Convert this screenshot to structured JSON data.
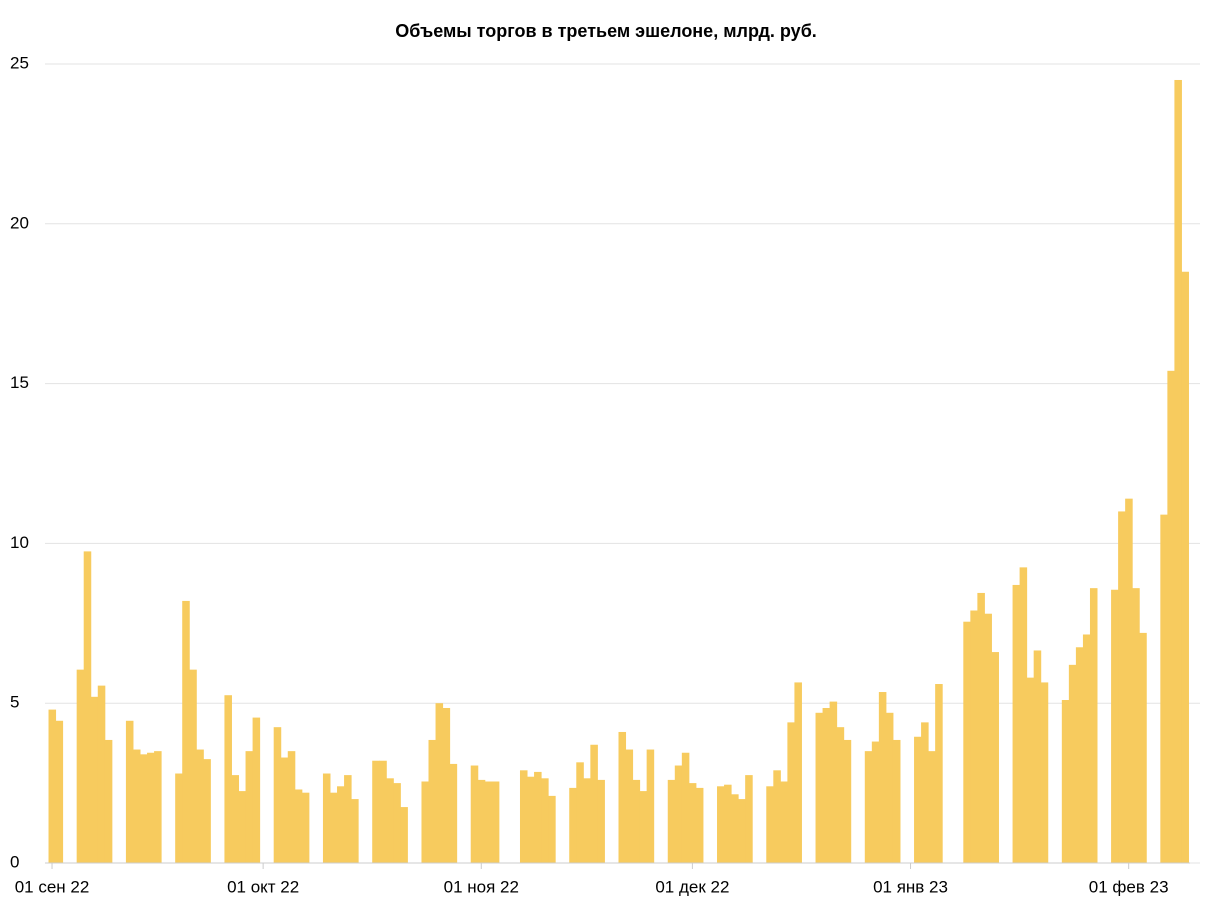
{
  "chart_data": {
    "type": "bar",
    "title": "Объемы торгов в третьем эшелоне, млрд. руб.",
    "color": "#f7cb5e",
    "grid": true,
    "xlim": [
      "2022-08-31",
      "2023-02-10"
    ],
    "xticks": [
      {
        "value": "2022-09-01",
        "label": "01 сен 22"
      },
      {
        "value": "2022-10-01",
        "label": "01 окт 22"
      },
      {
        "value": "2022-11-01",
        "label": "01 ноя 22"
      },
      {
        "value": "2022-12-01",
        "label": "01 дек 22"
      },
      {
        "value": "2023-01-01",
        "label": "01 янв 23"
      },
      {
        "value": "2023-02-01",
        "label": "01 фев 23"
      }
    ],
    "ylim": [
      0,
      25
    ],
    "yticks": [
      0,
      5,
      10,
      15,
      20,
      25
    ],
    "x": [
      "2022-09-01",
      "2022-09-02",
      "2022-09-05",
      "2022-09-06",
      "2022-09-07",
      "2022-09-08",
      "2022-09-09",
      "2022-09-12",
      "2022-09-13",
      "2022-09-14",
      "2022-09-15",
      "2022-09-16",
      "2022-09-19",
      "2022-09-20",
      "2022-09-21",
      "2022-09-22",
      "2022-09-23",
      "2022-09-26",
      "2022-09-27",
      "2022-09-28",
      "2022-09-29",
      "2022-09-30",
      "2022-10-03",
      "2022-10-04",
      "2022-10-05",
      "2022-10-06",
      "2022-10-07",
      "2022-10-10",
      "2022-10-11",
      "2022-10-12",
      "2022-10-13",
      "2022-10-14",
      "2022-10-17",
      "2022-10-18",
      "2022-10-19",
      "2022-10-20",
      "2022-10-21",
      "2022-10-24",
      "2022-10-25",
      "2022-10-26",
      "2022-10-27",
      "2022-10-28",
      "2022-10-31",
      "2022-11-01",
      "2022-11-02",
      "2022-11-03",
      "2022-11-07",
      "2022-11-08",
      "2022-11-09",
      "2022-11-10",
      "2022-11-11",
      "2022-11-14",
      "2022-11-15",
      "2022-11-16",
      "2022-11-17",
      "2022-11-18",
      "2022-11-21",
      "2022-11-22",
      "2022-11-23",
      "2022-11-24",
      "2022-11-25",
      "2022-11-28",
      "2022-11-29",
      "2022-11-30",
      "2022-12-01",
      "2022-12-02",
      "2022-12-05",
      "2022-12-06",
      "2022-12-07",
      "2022-12-08",
      "2022-12-09",
      "2022-12-12",
      "2022-12-13",
      "2022-12-14",
      "2022-12-15",
      "2022-12-16",
      "2022-12-19",
      "2022-12-20",
      "2022-12-21",
      "2022-12-22",
      "2022-12-23",
      "2022-12-26",
      "2022-12-27",
      "2022-12-28",
      "2022-12-29",
      "2022-12-30",
      "2023-01-02",
      "2023-01-03",
      "2023-01-04",
      "2023-01-05",
      "2023-01-09",
      "2023-01-10",
      "2023-01-11",
      "2023-01-12",
      "2023-01-13",
      "2023-01-16",
      "2023-01-17",
      "2023-01-18",
      "2023-01-19",
      "2023-01-20",
      "2023-01-23",
      "2023-01-24",
      "2023-01-25",
      "2023-01-26",
      "2023-01-27",
      "2023-01-30",
      "2023-01-31",
      "2023-02-01",
      "2023-02-02",
      "2023-02-03",
      "2023-02-06",
      "2023-02-07",
      "2023-02-08",
      "2023-02-09"
    ],
    "values": [
      4.8,
      4.45,
      6.05,
      9.75,
      5.2,
      5.55,
      3.85,
      4.45,
      3.55,
      3.4,
      3.45,
      3.5,
      2.8,
      8.2,
      6.05,
      3.55,
      3.25,
      5.25,
      2.75,
      2.25,
      3.5,
      4.55,
      4.25,
      3.3,
      3.5,
      2.3,
      2.2,
      2.8,
      2.2,
      2.4,
      2.75,
      2.0,
      3.2,
      3.2,
      2.65,
      2.5,
      1.75,
      2.55,
      3.85,
      5.0,
      4.85,
      3.1,
      3.05,
      2.6,
      2.55,
      2.55,
      2.9,
      2.7,
      2.85,
      2.65,
      2.1,
      2.35,
      3.15,
      2.65,
      3.7,
      2.6,
      4.1,
      3.55,
      2.6,
      2.25,
      3.55,
      2.6,
      3.05,
      3.45,
      2.5,
      2.35,
      2.4,
      2.45,
      2.15,
      2.0,
      2.75,
      2.4,
      2.9,
      2.55,
      4.4,
      5.65,
      4.7,
      4.85,
      5.05,
      4.25,
      3.85,
      3.5,
      3.8,
      5.35,
      4.7,
      3.85,
      3.95,
      4.4,
      3.5,
      5.6,
      7.55,
      7.9,
      8.45,
      7.8,
      6.6,
      8.7,
      9.25,
      5.8,
      6.65,
      5.65,
      5.1,
      6.2,
      6.75,
      7.15,
      8.6,
      8.55,
      11.0,
      11.4,
      8.6,
      7.2,
      10.9,
      15.4,
      24.5,
      18.5
    ]
  }
}
